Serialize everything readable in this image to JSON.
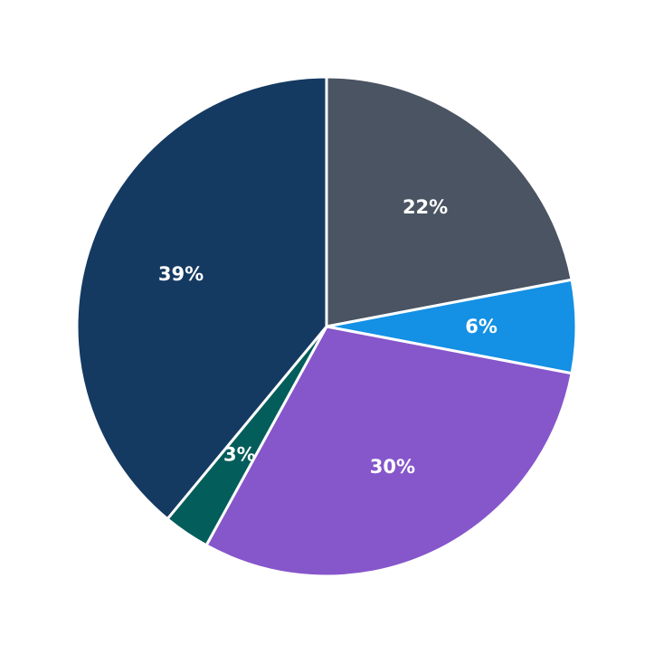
{
  "chart_data": {
    "type": "pie",
    "title": "",
    "start_angle_deg": 90,
    "direction": "clockwise",
    "slices": [
      {
        "label": "22%",
        "value": 22,
        "color": "#4a5462"
      },
      {
        "label": "6%",
        "value": 6,
        "color": "#1490e4"
      },
      {
        "label": "30%",
        "value": 30,
        "color": "#8656cb"
      },
      {
        "label": "3%",
        "value": 3,
        "color": "#035e5b"
      },
      {
        "label": "39%",
        "value": 39,
        "color": "#153a62"
      }
    ],
    "legend": null
  }
}
